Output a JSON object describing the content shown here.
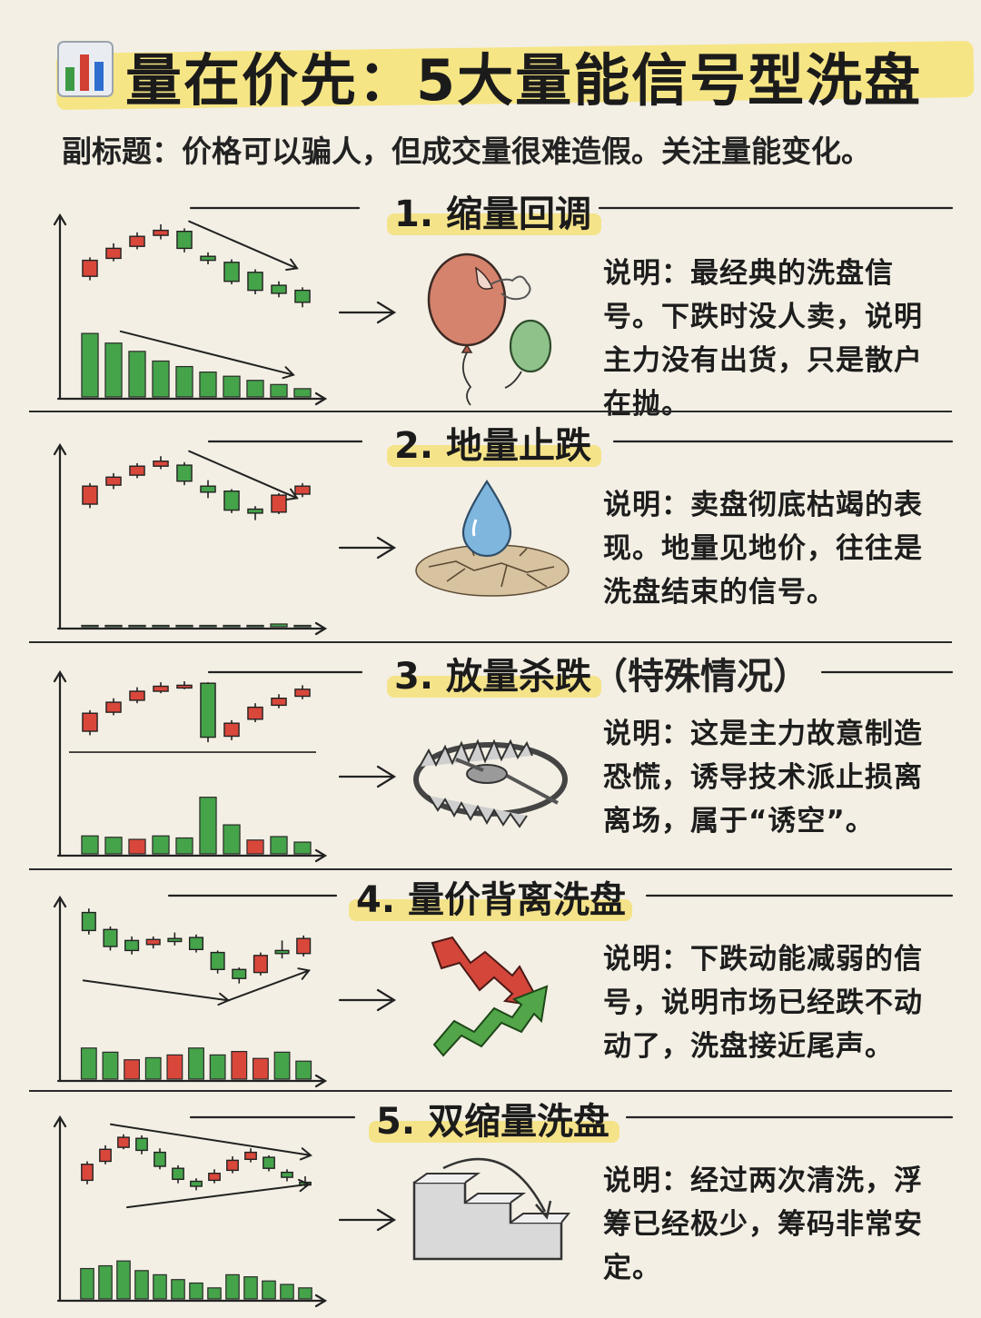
{
  "title": "量在价先：5大量能信号型洗盘",
  "title_icon": "bar-chart-icon",
  "subtitle": "副标题：价格可以骗人，但成交量很难造假。关注量能变化。",
  "colors": {
    "up": "#d9473b",
    "down": "#45a34a",
    "highlight": "#f4e07a",
    "background": "#f3efe4"
  },
  "sections": [
    {
      "title": "1. 缩量回调",
      "note": "",
      "icon": "deflating-balloon-icon",
      "description": "说明：最经典的洗盘信号。下跌时没人卖，说明主力没有出货，只是散户在抛。"
    },
    {
      "title": "2. 地量止跌",
      "note": "",
      "icon": "water-drop-on-dry-ground-icon",
      "description": "说明：卖盘彻底枯竭的表现。地量见地价，往往是洗盘结束的信号。"
    },
    {
      "title": "3. 放量杀跌",
      "note": "（特殊情况）",
      "icon": "bear-trap-icon",
      "description": "说明：这是主力故意制造恐慌，诱导技术派止损离离场，属于“诱空”。"
    },
    {
      "title": "4. 量价背离洗盘",
      "note": "",
      "icon": "reversal-arrows-icon",
      "description": "说明：下跌动能减弱的信号，说明市场已经跌不动动了，洗盘接近尾声。"
    },
    {
      "title": "5. 双缩量洗盘",
      "note": "",
      "icon": "descending-stairs-icon",
      "description": "说明：经过两次清洗，浮筹已经极少，筹码非常安定。"
    }
  ],
  "charts": [
    {
      "candles": [
        {
          "o": 4.8,
          "c": 6.4,
          "h": 6.7,
          "l": 4.4
        },
        {
          "o": 6.6,
          "c": 7.6,
          "h": 8.1,
          "l": 6.3
        },
        {
          "o": 7.8,
          "c": 8.8,
          "h": 9.2,
          "l": 7.5
        },
        {
          "o": 8.9,
          "c": 9.4,
          "h": 10,
          "l": 8.5
        },
        {
          "o": 9.3,
          "c": 7.6,
          "h": 9.6,
          "l": 7.2
        },
        {
          "o": 6.8,
          "c": 6.4,
          "h": 7.2,
          "l": 6
        },
        {
          "o": 6.2,
          "c": 4.3,
          "h": 6.5,
          "l": 4
        },
        {
          "o": 5.2,
          "c": 3.4,
          "h": 5.5,
          "l": 3
        },
        {
          "o": 3.9,
          "c": 3.1,
          "h": 4.3,
          "l": 2.7
        },
        {
          "o": 3.4,
          "c": 2.2,
          "h": 3.7,
          "l": 1.7
        }
      ],
      "volume": [
        9.2,
        7.8,
        6.6,
        5.2,
        4.4,
        3.6,
        3.0,
        2.4,
        1.8,
        1.2
      ],
      "vol_color": [
        "down",
        "down",
        "down",
        "down",
        "down",
        "down",
        "down",
        "down",
        "down",
        "down"
      ],
      "trend_price": "down",
      "trend_volume": "down"
    },
    {
      "candles": [
        {
          "o": 5,
          "c": 6.8,
          "h": 7.1,
          "l": 4.6
        },
        {
          "o": 6.9,
          "c": 7.7,
          "h": 8.1,
          "l": 6.5
        },
        {
          "o": 7.9,
          "c": 8.8,
          "h": 9.1,
          "l": 7.6
        },
        {
          "o": 8.8,
          "c": 9.3,
          "h": 9.8,
          "l": 8.5
        },
        {
          "o": 8.9,
          "c": 7.3,
          "h": 9.2,
          "l": 6.9
        },
        {
          "o": 6.8,
          "c": 6.2,
          "h": 7.4,
          "l": 5.6
        },
        {
          "o": 6.3,
          "c": 4.4,
          "h": 6.5,
          "l": 4.1
        },
        {
          "o": 4.5,
          "c": 4.1,
          "h": 4.8,
          "l": 3.4
        },
        {
          "o": 4.2,
          "c": 5.9,
          "h": 6.1,
          "l": 4
        },
        {
          "o": 6.0,
          "c": 6.8,
          "h": 7.1,
          "l": 5.7
        }
      ],
      "volume": [
        0.2,
        0.2,
        0.2,
        0.2,
        0.2,
        0.2,
        0.2,
        0.2,
        0.4,
        0.2
      ],
      "vol_color": [
        "down",
        "down",
        "down",
        "down",
        "down",
        "down",
        "down",
        "down",
        "down",
        "down"
      ],
      "trend_price": "down",
      "trend_volume": "none"
    },
    {
      "candles": [
        {
          "o": 5,
          "c": 6.8,
          "h": 7.1,
          "l": 4.6
        },
        {
          "o": 6.9,
          "c": 7.9,
          "h": 8.3,
          "l": 6.6
        },
        {
          "o": 8.1,
          "c": 9.0,
          "h": 9.4,
          "l": 7.8
        },
        {
          "o": 9.0,
          "c": 9.5,
          "h": 9.9,
          "l": 8.8
        },
        {
          "o": 9.6,
          "c": 9.6,
          "h": 10,
          "l": 9.2
        },
        {
          "o": 9.8,
          "c": 4.4,
          "h": 9.9,
          "l": 3.9
        },
        {
          "o": 4.5,
          "c": 5.8,
          "h": 6.1,
          "l": 4.1
        },
        {
          "o": 6.2,
          "c": 7.4,
          "h": 7.8,
          "l": 5.9
        },
        {
          "o": 7.6,
          "c": 8.3,
          "h": 8.7,
          "l": 7.3
        },
        {
          "o": 8.5,
          "c": 9.2,
          "h": 9.6,
          "l": 8.2
        }
      ],
      "volume": [
        2.6,
        2.4,
        2.1,
        2.6,
        2.3,
        8.2,
        4.2,
        2.0,
        2.5,
        1.7
      ],
      "vol_color": [
        "down",
        "down",
        "up",
        "down",
        "down",
        "down",
        "down",
        "up",
        "down",
        "down"
      ],
      "trend_price": "none",
      "trend_volume": "none"
    },
    {
      "candles": [
        {
          "o": 9.4,
          "c": 7.6,
          "h": 9.8,
          "l": 7.2
        },
        {
          "o": 7.7,
          "c": 6.0,
          "h": 8.0,
          "l": 5.6
        },
        {
          "o": 6.6,
          "c": 5.6,
          "h": 7.0,
          "l": 5.2
        },
        {
          "o": 6.2,
          "c": 6.7,
          "h": 7.0,
          "l": 5.8
        },
        {
          "o": 6.8,
          "c": 6.5,
          "h": 7.4,
          "l": 6.1
        },
        {
          "o": 6.9,
          "c": 5.7,
          "h": 7.2,
          "l": 5.4
        },
        {
          "o": 5.4,
          "c": 3.7,
          "h": 5.6,
          "l": 3.3
        },
        {
          "o": 3.7,
          "c": 2.8,
          "h": 3.9,
          "l": 2.3
        },
        {
          "o": 3.4,
          "c": 5.1,
          "h": 5.4,
          "l": 3.1
        },
        {
          "o": 5.6,
          "c": 5.3,
          "h": 6.6,
          "l": 4.8
        },
        {
          "o": 5.3,
          "c": 6.8,
          "h": 7.1,
          "l": 5.0
        }
      ],
      "volume": [
        4.5,
        3.9,
        2.8,
        3.1,
        3.5,
        4.5,
        3.5,
        4.0,
        3.0,
        3.9,
        2.6
      ],
      "vol_color": [
        "down",
        "down",
        "up",
        "down",
        "up",
        "down",
        "down",
        "up",
        "up",
        "down",
        "down"
      ],
      "trend_price": "valley",
      "trend_volume": "none"
    },
    {
      "candles": [
        {
          "o": 4.6,
          "c": 6.2,
          "h": 6.5,
          "l": 4.2
        },
        {
          "o": 6.5,
          "c": 7.7,
          "h": 8.1,
          "l": 6.2
        },
        {
          "o": 7.9,
          "c": 8.9,
          "h": 9.2,
          "l": 7.7
        },
        {
          "o": 8.8,
          "c": 7.6,
          "h": 9.1,
          "l": 7.2
        },
        {
          "o": 7.4,
          "c": 6.0,
          "h": 7.8,
          "l": 5.7
        },
        {
          "o": 5.8,
          "c": 4.7,
          "h": 6.1,
          "l": 4.3
        },
        {
          "o": 4.5,
          "c": 4.0,
          "h": 4.8,
          "l": 3.6
        },
        {
          "o": 4.6,
          "c": 5.3,
          "h": 5.7,
          "l": 4.3
        },
        {
          "o": 5.6,
          "c": 6.6,
          "h": 7.0,
          "l": 5.3
        },
        {
          "o": 6.7,
          "c": 7.4,
          "h": 7.8,
          "l": 6.4
        },
        {
          "o": 6.9,
          "c": 5.8,
          "h": 7.1,
          "l": 5.5
        },
        {
          "o": 5.4,
          "c": 4.9,
          "h": 5.7,
          "l": 4.5
        },
        {
          "o": 4.4,
          "c": 4.2,
          "h": 5.0,
          "l": 3.9
        }
      ],
      "volume": [
        4.4,
        4.8,
        5.5,
        4.1,
        3.5,
        2.8,
        2.3,
        1.6,
        3.5,
        3.2,
        2.6,
        2.1,
        1.6
      ],
      "vol_color": [
        "down",
        "down",
        "down",
        "down",
        "down",
        "down",
        "down",
        "down",
        "down",
        "down",
        "down",
        "down",
        "down"
      ],
      "trend_price": "double",
      "trend_volume": "none"
    }
  ]
}
